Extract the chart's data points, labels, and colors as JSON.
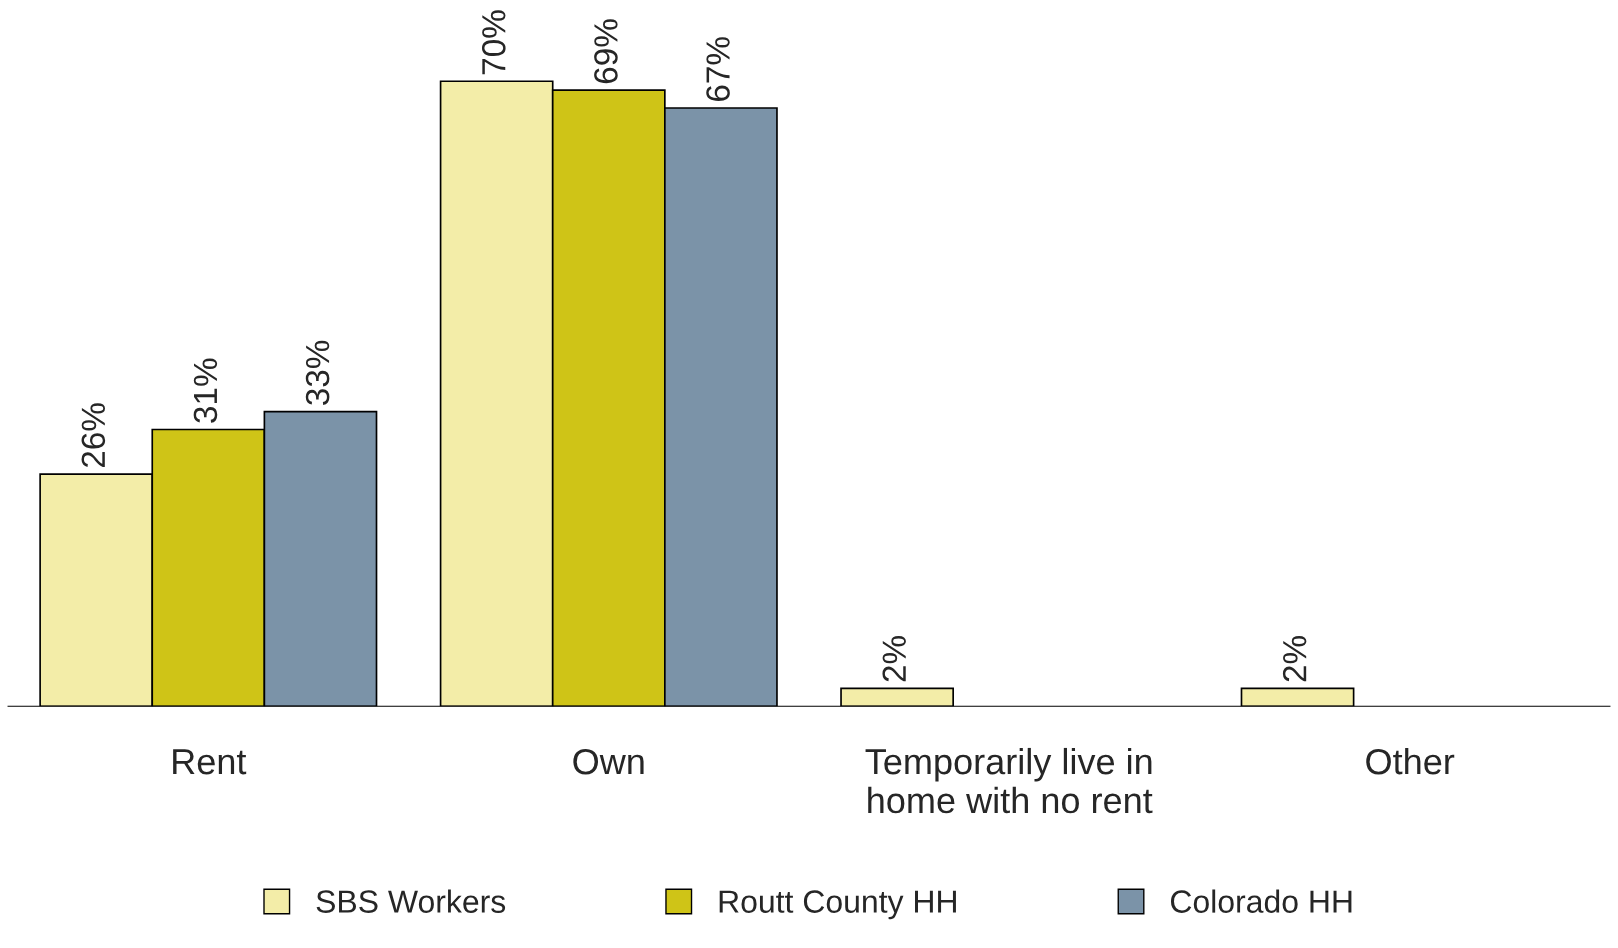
{
  "chart_data": {
    "type": "bar",
    "categories": [
      "Rent",
      "Own",
      "Temporarily live in\nhome with no rent",
      "Other"
    ],
    "series": [
      {
        "name": "SBS Workers",
        "color": "#f3eda8",
        "values": [
          26,
          70,
          2,
          2
        ],
        "value_labels": [
          "26%",
          "70%",
          "2%",
          "2%"
        ]
      },
      {
        "name": "Routt County HH",
        "color": "#cfc417",
        "values": [
          31,
          69,
          null,
          null
        ],
        "value_labels": [
          "31%",
          "69%",
          null,
          null
        ]
      },
      {
        "name": "Colorado HH",
        "color": "#7b93a8",
        "values": [
          33,
          67,
          null,
          null
        ],
        "value_labels": [
          "33%",
          "67%",
          null,
          null
        ]
      }
    ],
    "legend": "bottom",
    "grid": false
  }
}
